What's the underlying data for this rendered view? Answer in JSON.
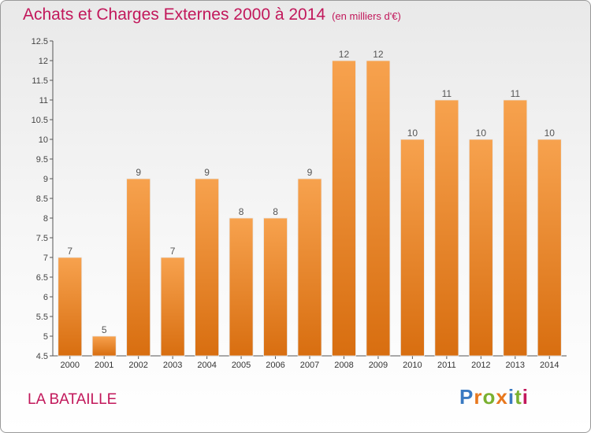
{
  "title": "Achats et Charges Externes 2000 à 2014",
  "subtitle": "(en milliers d'€)",
  "town": "LA BATAILLE",
  "logo": "Proxiti",
  "colors": {
    "bar_top": "#f7a24e",
    "bar_bottom": "#d86e10",
    "title": "#c2185b"
  },
  "chart_data": {
    "type": "bar",
    "title": "Achats et Charges Externes 2000 à 2014",
    "subtitle": "(en milliers d'€)",
    "categories": [
      "2000",
      "2001",
      "2002",
      "2003",
      "2004",
      "2005",
      "2006",
      "2007",
      "2008",
      "2009",
      "2010",
      "2011",
      "2012",
      "2013",
      "2014"
    ],
    "values": [
      7,
      5,
      9,
      7,
      9,
      8,
      8,
      9,
      12,
      12,
      10,
      11,
      10,
      11,
      10
    ],
    "ylim": [
      4.5,
      12.5
    ],
    "yticks": [
      4.5,
      5,
      5.5,
      6,
      6.5,
      7,
      7.5,
      8,
      8.5,
      9,
      9.5,
      10,
      10.5,
      11,
      11.5,
      12,
      12.5
    ],
    "grid": false,
    "xlabel": "",
    "ylabel": ""
  }
}
